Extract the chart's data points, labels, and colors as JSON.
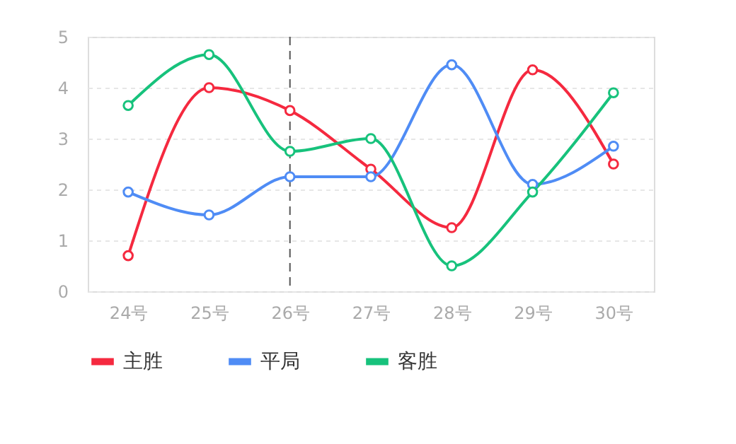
{
  "chart_data": {
    "type": "line",
    "categories": [
      "24号",
      "25号",
      "26号",
      "27号",
      "28号",
      "29号",
      "30号"
    ],
    "series": [
      {
        "name": "主胜",
        "color": "#f5293f",
        "values": [
          0.7,
          4.0,
          3.55,
          2.4,
          1.25,
          4.35,
          2.5
        ]
      },
      {
        "name": "平局",
        "color": "#4f8cf5",
        "values": [
          1.95,
          1.5,
          2.25,
          2.25,
          4.45,
          2.1,
          2.85
        ]
      },
      {
        "name": "客胜",
        "color": "#17c27c",
        "values": [
          3.65,
          4.65,
          2.75,
          3.0,
          0.5,
          1.95,
          3.9
        ]
      }
    ],
    "ylim": [
      0,
      5
    ],
    "yticks": [
      0,
      1,
      2,
      3,
      4,
      5
    ],
    "grid": "y",
    "legend": "bottom",
    "marker": "circle",
    "line_style": "solid",
    "ref_lines": [
      {
        "axis": "x",
        "value": "26号",
        "line_style": "dashed",
        "color": "#555555"
      }
    ]
  }
}
